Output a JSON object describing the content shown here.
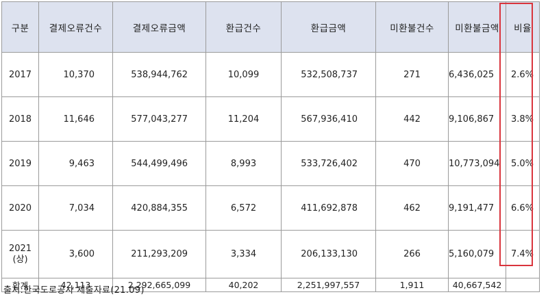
{
  "headers": [
    "구분",
    "결제오류건수",
    "결제오류금액",
    "환급건수",
    "환급금액",
    "미환불건수",
    "미환불금액",
    "비율"
  ],
  "rows": [
    {
      "year": "2017",
      "sub": "",
      "c1": "10,370",
      "c2": "538,944,762",
      "c3": "10,099",
      "c4": "532,508,737",
      "c5": "271",
      "c6": "6,436,025",
      "c7": "2.6%"
    },
    {
      "year": "2018",
      "sub": "",
      "c1": "11,646",
      "c2": "577,043,277",
      "c3": "11,204",
      "c4": "567,936,410",
      "c5": "442",
      "c6": "9,106,867",
      "c7": "3.8%"
    },
    {
      "year": "2019",
      "sub": "",
      "c1": "9,463",
      "c2": "544,499,496",
      "c3": "8,993",
      "c4": "533,726,402",
      "c5": "470",
      "c6": "10,773,094",
      "c7": "5.0%"
    },
    {
      "year": "2020",
      "sub": "",
      "c1": "7,034",
      "c2": "420,884,355",
      "c3": "6,572",
      "c4": "411,692,878",
      "c5": "462",
      "c6": "9,191,477",
      "c7": "6.6%"
    },
    {
      "year": "2021",
      "sub": "(상)",
      "c1": "3,600",
      "c2": "211,293,209",
      "c3": "3,334",
      "c4": "206,133,130",
      "c5": "266",
      "c6": "5,160,079",
      "c7": "7.4%"
    }
  ],
  "total": {
    "label": "합계",
    "c1": "42,113",
    "c2": "2,292,665,099",
    "c3": "40,202",
    "c4": "2,251,997,557",
    "c5": "1,911",
    "c6": "40,667,542",
    "c7": ""
  },
  "source": "출처:한국도로공사 제출자료(21.09)",
  "colors": {
    "header_bg": "#dde2ef",
    "highlight_border": "#d9343c",
    "grid": "#9a9a9a"
  }
}
